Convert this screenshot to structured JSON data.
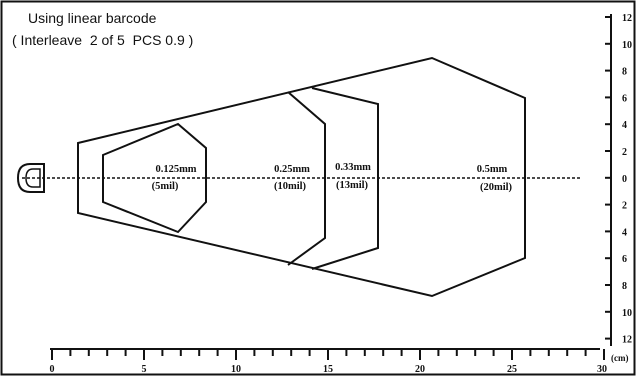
{
  "caption": {
    "line1": "Using linear barcode",
    "line2": "( Interleave  2 of 5  PCS 0.9 )"
  },
  "zones": [
    {
      "size": "0.125mm",
      "mil": "(5mil)"
    },
    {
      "size": "0.25mm",
      "mil": "(10mil)"
    },
    {
      "size": "0.33mm",
      "mil": "(13mil)"
    },
    {
      "size": "0.5mm",
      "mil": "(20mil)"
    }
  ],
  "x_axis": {
    "labels": [
      "0",
      "5",
      "10",
      "15",
      "20",
      "25",
      "30"
    ],
    "unit": "(cm)"
  },
  "y_axis": {
    "labels": [
      "12",
      "10",
      "8",
      "6",
      "4",
      "2",
      "0",
      "2",
      "4",
      "6",
      "8",
      "10",
      "12"
    ]
  },
  "colors": {
    "line": "#111111",
    "background": "#ffffff"
  },
  "icons": {
    "scanner": "scanner-head-icon"
  }
}
